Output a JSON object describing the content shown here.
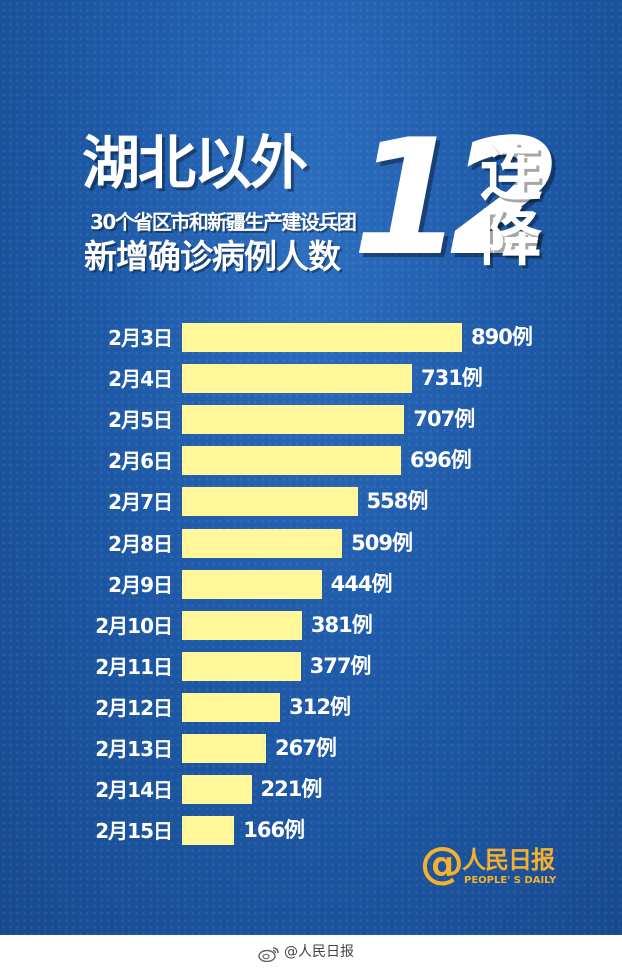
{
  "poster": {
    "title_main": "湖北以外",
    "title_sub": "30个省区市和新疆生产建设兵团",
    "title_third": "新增确诊病例人数",
    "title_number": "12",
    "title_side": [
      "连",
      "降"
    ]
  },
  "chart_data": {
    "type": "bar",
    "orientation": "horizontal",
    "categories": [
      "2月3日",
      "2月4日",
      "2月5日",
      "2月6日",
      "2月7日",
      "2月8日",
      "2月9日",
      "2月10日",
      "2月11日",
      "2月12日",
      "2月13日",
      "2月14日",
      "2月15日"
    ],
    "values": [
      890,
      731,
      707,
      696,
      558,
      509,
      444,
      381,
      377,
      312,
      267,
      221,
      166
    ],
    "value_labels": [
      "890例",
      "731例",
      "707例",
      "696例",
      "558例",
      "509例",
      "444例",
      "381例",
      "377例",
      "312例",
      "267例",
      "221例",
      "166例"
    ],
    "bar_color": "#fff79a",
    "background_color": "#1e5aa8",
    "grid": false,
    "legend": false
  },
  "brand": {
    "at_symbol": "@",
    "name": "人民日报",
    "english": "PEOPLE' S DAILY",
    "color": "#f5b02e"
  },
  "footer": {
    "text": "@人民日报",
    "icon": "weibo-icon"
  }
}
